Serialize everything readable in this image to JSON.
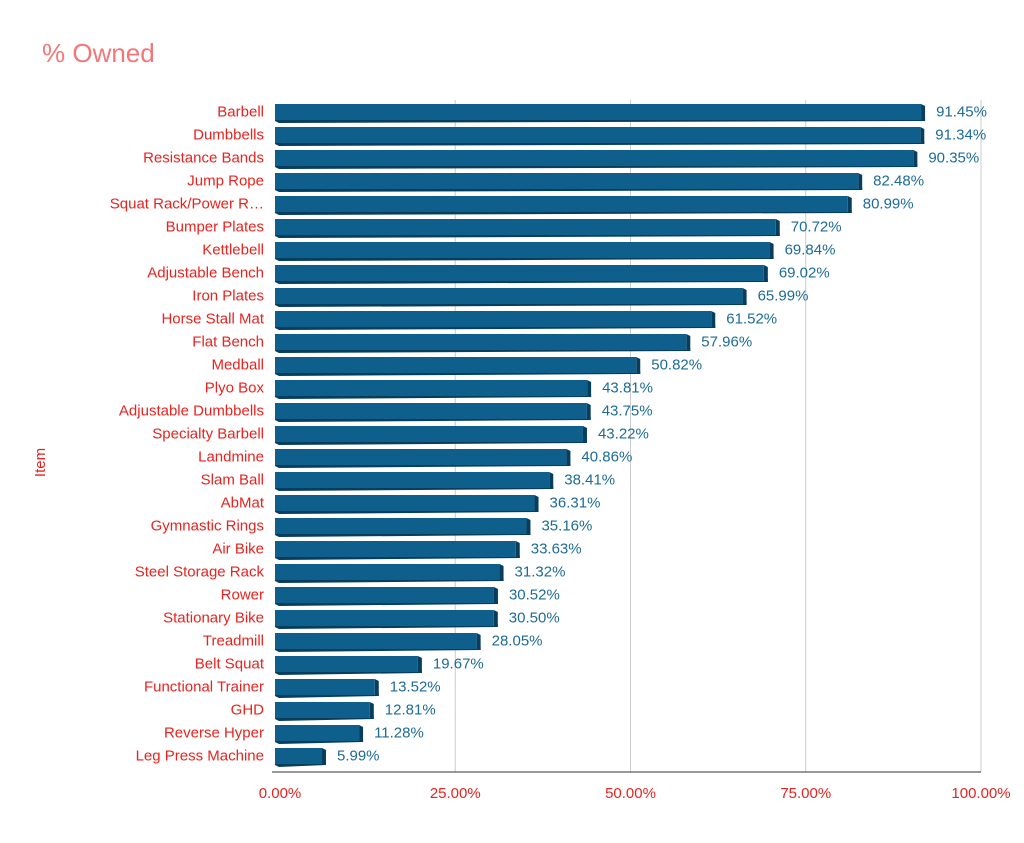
{
  "chart_data": {
    "type": "bar",
    "orientation": "horizontal",
    "title": "% Owned",
    "ylabel": "Item",
    "xlabel": "",
    "categories": [
      "Barbell",
      "Dumbbells",
      "Resistance Bands",
      "Jump Rope",
      "Squat Rack/Power R…",
      "Bumper Plates",
      "Kettlebell",
      "Adjustable Bench",
      "Iron Plates",
      "Horse Stall Mat",
      "Flat Bench",
      "Medball",
      "Plyo Box",
      "Adjustable Dumbbells",
      "Specialty Barbell",
      "Landmine",
      "Slam Ball",
      "AbMat",
      "Gymnastic Rings",
      "Air Bike",
      "Steel Storage Rack",
      "Rower",
      "Stationary Bike",
      "Treadmill",
      "Belt Squat",
      "Functional Trainer",
      "GHD",
      "Reverse Hyper",
      "Leg Press Machine"
    ],
    "values": [
      91.45,
      91.34,
      90.35,
      82.48,
      80.99,
      70.72,
      69.84,
      69.02,
      65.99,
      61.52,
      57.96,
      50.82,
      43.81,
      43.75,
      43.22,
      40.86,
      38.41,
      36.31,
      35.16,
      33.63,
      31.32,
      30.52,
      30.5,
      28.05,
      19.67,
      13.52,
      12.81,
      11.28,
      5.99
    ],
    "data_labels": [
      "91.45%",
      "91.34%",
      "90.35%",
      "82.48%",
      "80.99%",
      "70.72%",
      "69.84%",
      "69.02%",
      "65.99%",
      "61.52%",
      "57.96%",
      "50.82%",
      "43.81%",
      "43.75%",
      "43.22%",
      "40.86%",
      "38.41%",
      "36.31%",
      "35.16%",
      "33.63%",
      "31.32%",
      "30.52%",
      "30.50%",
      "28.05%",
      "19.67%",
      "13.52%",
      "12.81%",
      "11.28%",
      "5.99%"
    ],
    "xlim": [
      0,
      100
    ],
    "x_ticks": [
      0,
      25,
      50,
      75,
      100
    ],
    "x_tick_labels": [
      "0.00%",
      "25.00%",
      "50.00%",
      "75.00%",
      "100.00%"
    ],
    "grid": "vertical",
    "legend": "none",
    "colors": {
      "bar": "#0e5f8c",
      "bar_shadow": "#073e5e",
      "title": "#f27878",
      "axis_text": "#e8231f",
      "data_label": "#1d6b96",
      "grid": "#cccccc"
    }
  }
}
